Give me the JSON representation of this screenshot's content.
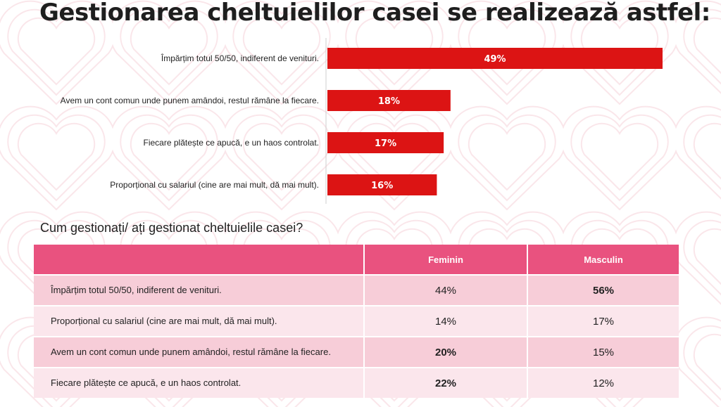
{
  "title": "Gestionarea cheltuielilor casei se realizează astfel:",
  "chart_data": {
    "type": "bar",
    "orientation": "horizontal",
    "categories": [
      "Împărțim totul 50/50, indiferent de venituri.",
      "Avem un cont comun unde punem amândoi, restul rămâne la fiecare.",
      "Fiecare plătește ce apucă, e un haos controlat.",
      "Proporțional cu salariul (cine are mai mult, dă mai mult)."
    ],
    "values": [
      49,
      18,
      17,
      16
    ],
    "value_labels": [
      "49%",
      "18%",
      "17%",
      "16%"
    ],
    "xlim": [
      0,
      50
    ],
    "grid": false,
    "bar_color": "#dc1414"
  },
  "table": {
    "subtitle": "Cum gestionați/ ați gestionat cheltuielile casei?",
    "headers": [
      "",
      "Feminin",
      "Masculin"
    ],
    "rows": [
      {
        "label": "Împărțim totul 50/50, indiferent de venituri.",
        "feminin": "44%",
        "masculin": "56%",
        "bold": "masculin"
      },
      {
        "label": "Proporțional cu salariul (cine are mai mult, dă mai mult).",
        "feminin": "14%",
        "masculin": "17%",
        "bold": ""
      },
      {
        "label": "Avem un cont comun unde punem amândoi, restul rămâne la fiecare.",
        "feminin": "20%",
        "masculin": "15%",
        "bold": "feminin"
      },
      {
        "label": "Fiecare plătește ce apucă, e un haos controlat.",
        "feminin": "22%",
        "masculin": "12%",
        "bold": "feminin"
      }
    ],
    "header_color": "#e9527f",
    "row_colors": [
      "#f7cdd8",
      "#fbe6ec"
    ]
  }
}
